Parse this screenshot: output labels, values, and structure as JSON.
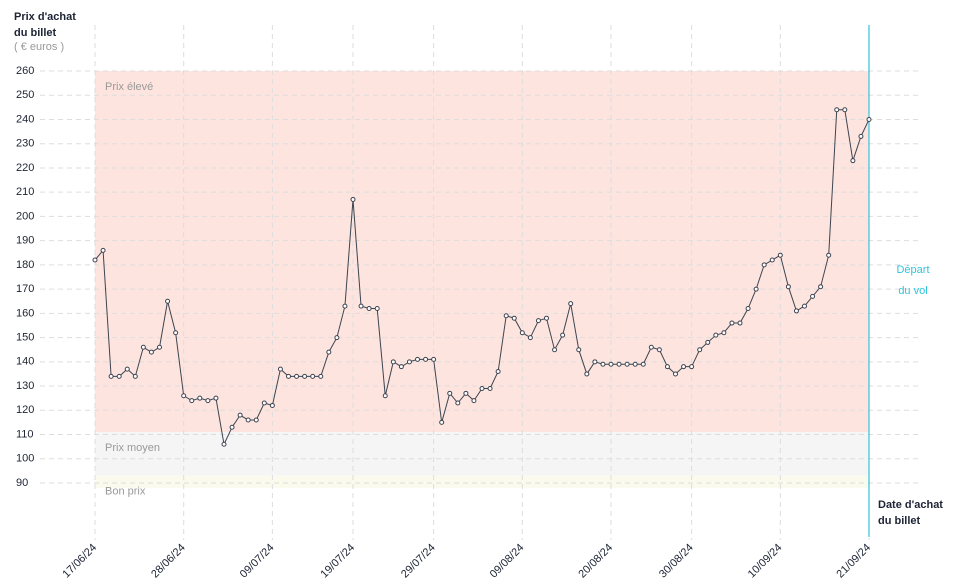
{
  "chart_data": {
    "type": "line",
    "y_title_lines": [
      "Prix d'achat",
      "du billet"
    ],
    "y_unit": "( € euros )",
    "x_title_lines": [
      "Date d'achat",
      "du billet"
    ],
    "annotation_lines": [
      "Départ",
      "du vol"
    ],
    "x": [
      "17/06/24",
      "18/06/24",
      "19/06/24",
      "20/06/24",
      "21/06/24",
      "22/06/24",
      "23/06/24",
      "24/06/24",
      "25/06/24",
      "26/06/24",
      "27/06/24",
      "28/06/24",
      "29/06/24",
      "30/06/24",
      "01/07/24",
      "02/07/24",
      "03/07/24",
      "04/07/24",
      "05/07/24",
      "06/07/24",
      "07/07/24",
      "08/07/24",
      "09/07/24",
      "10/07/24",
      "11/07/24",
      "12/07/24",
      "13/07/24",
      "14/07/24",
      "15/07/24",
      "16/07/24",
      "17/07/24",
      "18/07/24",
      "19/07/24",
      "20/07/24",
      "21/07/24",
      "22/07/24",
      "23/07/24",
      "24/07/24",
      "25/07/24",
      "26/07/24",
      "27/07/24",
      "28/07/24",
      "29/07/24",
      "30/07/24",
      "31/07/24",
      "01/08/24",
      "02/08/24",
      "03/08/24",
      "04/08/24",
      "05/08/24",
      "06/08/24",
      "07/08/24",
      "08/08/24",
      "09/08/24",
      "10/08/24",
      "11/08/24",
      "12/08/24",
      "13/08/24",
      "14/08/24",
      "15/08/24",
      "16/08/24",
      "17/08/24",
      "18/08/24",
      "19/08/24",
      "20/08/24",
      "21/08/24",
      "22/08/24",
      "23/08/24",
      "24/08/24",
      "25/08/24",
      "26/08/24",
      "27/08/24",
      "28/08/24",
      "29/08/24",
      "30/08/24",
      "31/08/24",
      "01/09/24",
      "02/09/24",
      "03/09/24",
      "04/09/24",
      "05/09/24",
      "06/09/24",
      "07/09/24",
      "08/09/24",
      "09/09/24",
      "10/09/24",
      "11/09/24",
      "12/09/24",
      "13/09/24",
      "14/09/24",
      "15/09/24",
      "16/09/24",
      "17/09/24",
      "18/09/24",
      "19/09/24",
      "20/09/24",
      "21/09/24"
    ],
    "values": [
      182,
      186,
      134,
      134,
      137,
      134,
      146,
      144,
      146,
      165,
      152,
      126,
      124,
      125,
      124,
      125,
      106,
      113,
      118,
      116,
      116,
      123,
      122,
      137,
      134,
      134,
      134,
      134,
      134,
      144,
      150,
      163,
      207,
      163,
      162,
      162,
      126,
      140,
      138,
      140,
      141,
      141,
      141,
      115,
      127,
      123,
      127,
      124,
      129,
      129,
      136,
      159,
      158,
      152,
      150,
      157,
      158,
      145,
      151,
      164,
      145,
      135,
      140,
      139,
      139,
      139,
      139,
      139,
      139,
      146,
      145,
      138,
      135,
      138,
      138,
      145,
      148,
      151,
      152,
      156,
      156,
      162,
      170,
      180,
      182,
      184,
      171,
      161,
      163,
      167,
      171,
      184,
      244,
      244,
      223,
      233,
      240
    ],
    "color": "#3d4451",
    "xticks": [
      "17/06/24",
      "28/06/24",
      "09/07/24",
      "19/07/24",
      "29/07/24",
      "09/08/24",
      "20/08/24",
      "30/08/24",
      "10/09/24",
      "21/09/24"
    ],
    "ylim": [
      90,
      260
    ],
    "yticks": [
      90,
      100,
      110,
      120,
      130,
      140,
      150,
      160,
      170,
      180,
      190,
      200,
      210,
      220,
      230,
      240,
      250,
      260
    ],
    "grid": true,
    "bands": [
      {
        "label": "Prix élevé",
        "from": 111,
        "to": 260,
        "color": "#fde4de"
      },
      {
        "label": "Prix moyen",
        "from": 93,
        "to": 111,
        "color": "#f5f5f5"
      },
      {
        "label": "Bon prix",
        "from": 88,
        "to": 93,
        "color": "#fafbec"
      }
    ],
    "departure": "21/09/24",
    "departure_color": "#2ec4dc"
  }
}
